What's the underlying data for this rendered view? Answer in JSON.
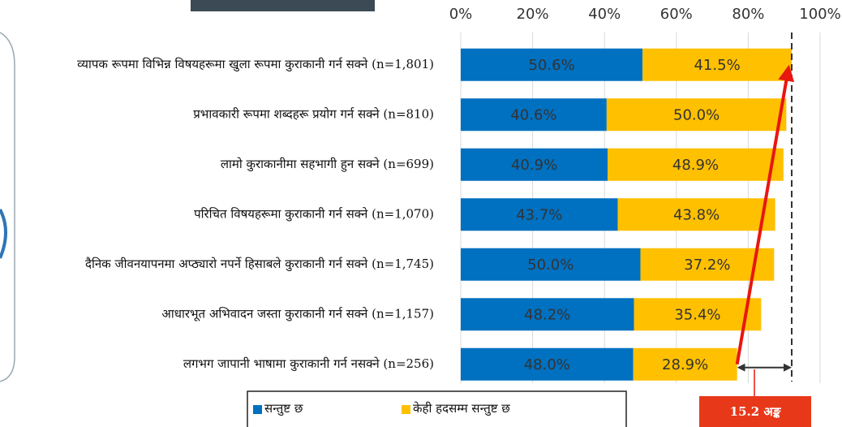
{
  "chart_data": {
    "type": "stacked-barh",
    "categories": [
      "व्यापक रूपमा विभिन्न विषयहरूमा खुला रूपमा कुराकानी गर्न सक्ने (n=1,801)",
      "प्रभावकारी रूपमा शब्दहरू प्रयोग गर्न सक्ने (n=810)",
      "लामो कुराकानीमा सहभागी हुन सक्ने (n=699)",
      "परिचित विषयहरूमा कुराकानी गर्न सक्ने (n=1,070)",
      "दैनिक जीवनयापनमा अप्ठ्यारो नपर्ने हिसाबले कुराकानी गर्न सक्ने (n=1,745)",
      "आधारभूत अभिवादन जस्ता कुराकानी गर्न सक्ने (n=1,157)",
      "लगभग जापानी भाषामा कुराकानी गर्न नसक्ने (n=256)"
    ],
    "series": [
      {
        "name": "सन्तुष्ट छ",
        "color": "#0070c0",
        "values": [
          50.6,
          40.6,
          40.9,
          43.7,
          50.0,
          48.2,
          48.0
        ],
        "value_labels": [
          "50.6%",
          "40.6%",
          "40.9%",
          "43.7%",
          "50.0%",
          "48.2%",
          "48.0%"
        ]
      },
      {
        "name": "केही हदसम्म सन्तुष्ट छ",
        "color": "#ffc000",
        "values": [
          41.5,
          50.0,
          48.9,
          43.8,
          37.2,
          35.4,
          28.9
        ],
        "value_labels": [
          "41.5%",
          "50.0%",
          "48.9%",
          "43.8%",
          "37.2%",
          "35.4%",
          "28.9%"
        ]
      }
    ],
    "xlim": [
      0,
      100
    ],
    "xticks": [
      {
        "value": 0,
        "label": "0%"
      },
      {
        "value": 20,
        "label": "20%"
      },
      {
        "value": 40,
        "label": "40%"
      },
      {
        "value": 60,
        "label": "60%"
      },
      {
        "value": 80,
        "label": "80%"
      },
      {
        "value": 100,
        "label": "100%"
      }
    ],
    "grid": true,
    "annotation": "15.2 अङ्क"
  }
}
